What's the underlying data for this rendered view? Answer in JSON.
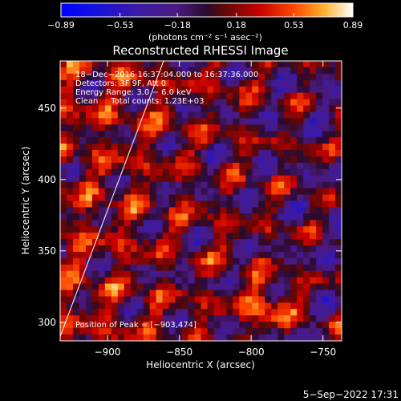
{
  "chart_data": {
    "type": "heatmap",
    "title": "Reconstructed RHESSI Image",
    "xlabel": "Heliocentric X (arcsec)",
    "ylabel": "Heliocentric Y (arcsec)",
    "xlim": [
      -933,
      -737
    ],
    "ylim": [
      287,
      483
    ],
    "x_ticks": [
      -900,
      -850,
      -800,
      -750
    ],
    "x_tick_labels": [
      "−900",
      "−850",
      "−800",
      "−750"
    ],
    "y_ticks": [
      300,
      350,
      400,
      450
    ],
    "y_tick_labels": [
      "300",
      "350",
      "400",
      "450"
    ],
    "colorbar": {
      "min": -0.89,
      "max": 0.89,
      "tick_values": [
        -0.89,
        -0.53,
        -0.18,
        0.18,
        0.53,
        0.89
      ],
      "tick_labels": [
        "−0.89",
        "−0.53",
        "−0.18",
        "0.18",
        "0.53",
        "0.89"
      ],
      "unit_label": "(photons cm⁻² s⁻¹ asec⁻²)"
    },
    "info_lines": [
      "18−Dec−2016 16:37:04.000 to 16:37:36.000",
      "Detectors: 3F 9F, Att 0",
      "Energy Range: 3.0 − 6.0 keV",
      "Clean     Total counts: 1.23E+03"
    ],
    "peak_label": "Position of Peak = [−903,474]",
    "limb_line": {
      "x": [
        -933,
        -861
      ],
      "y": [
        290,
        483
      ]
    },
    "grid": false
  },
  "footer": {
    "date": "5−Sep−2022 17:31"
  }
}
